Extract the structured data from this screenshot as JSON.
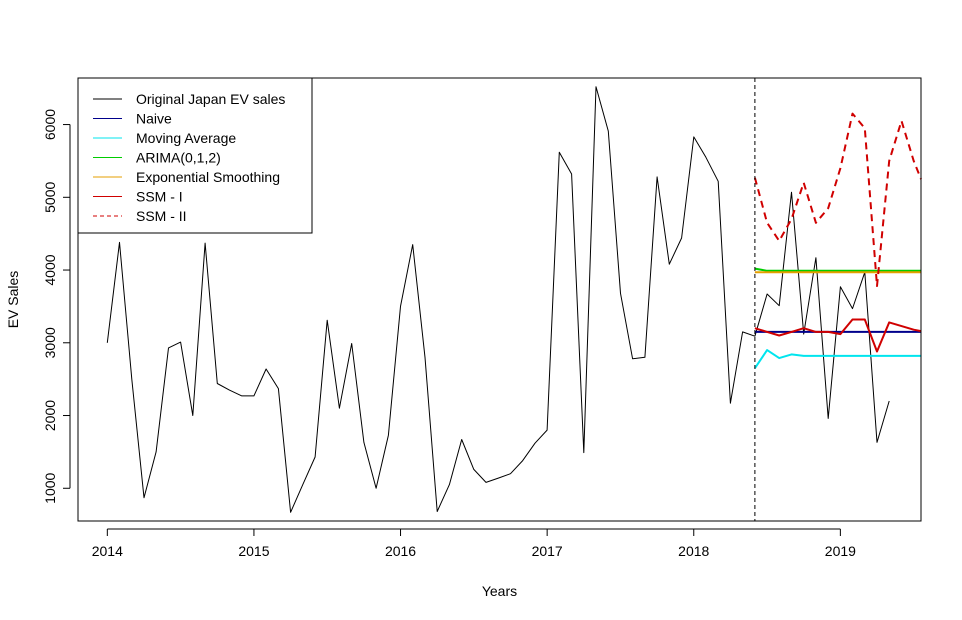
{
  "chart_data": {
    "type": "line",
    "xlabel": "Years",
    "ylabel": "EV Sales",
    "xlim": [
      2013.8,
      2019.55
    ],
    "ylim": [
      550,
      6640
    ],
    "x_ticks": [
      2014,
      2015,
      2016,
      2017,
      2018,
      2019
    ],
    "y_ticks": [
      1000,
      2000,
      3000,
      4000,
      5000,
      6000
    ],
    "grid": false,
    "legend_position": "top-left",
    "forecast_start": 2018.417,
    "series": [
      {
        "name": "Original Japan EV sales",
        "color": "#000000",
        "dash": "solid",
        "x": [
          2014.0,
          2014.083,
          2014.167,
          2014.25,
          2014.333,
          2014.417,
          2014.5,
          2014.583,
          2014.667,
          2014.75,
          2014.833,
          2014.917,
          2015.0,
          2015.083,
          2015.167,
          2015.25,
          2015.333,
          2015.417,
          2015.5,
          2015.583,
          2015.667,
          2015.75,
          2015.833,
          2015.917,
          2016.0,
          2016.083,
          2016.167,
          2016.25,
          2016.333,
          2016.417,
          2016.5,
          2016.583,
          2016.667,
          2016.75,
          2016.833,
          2016.917,
          2017.0,
          2017.083,
          2017.167,
          2017.25,
          2017.333,
          2017.417,
          2017.5,
          2017.583,
          2017.667,
          2017.75,
          2017.833,
          2017.917,
          2018.0,
          2018.083,
          2018.167,
          2018.25,
          2018.333,
          2018.417,
          2018.5,
          2018.583,
          2018.667,
          2018.75,
          2018.833,
          2018.917,
          2019.0,
          2019.083,
          2019.167,
          2019.25,
          2019.333
        ],
        "values": [
          3000,
          4380,
          2500,
          870,
          1500,
          2930,
          3010,
          2000,
          4370,
          2440,
          2350,
          2270,
          2270,
          2640,
          2370,
          670,
          1050,
          1430,
          3310,
          2100,
          2990,
          1630,
          1000,
          1730,
          3500,
          4350,
          2800,
          680,
          1050,
          1670,
          1260,
          1080,
          1140,
          1200,
          1380,
          1620,
          1800,
          5620,
          5320,
          1490,
          6520,
          5910,
          3680,
          2780,
          2800,
          5280,
          4080,
          4440,
          5830,
          5550,
          5220,
          2170,
          3150,
          3090,
          3670,
          3510,
          5070,
          3120,
          4170,
          1960,
          3770,
          3470,
          3970,
          1630,
          2200
        ]
      },
      {
        "name": "Naive",
        "color": "#00008B",
        "dash": "solid",
        "x": [
          2018.417,
          2019.55
        ],
        "values": [
          3150,
          3150
        ]
      },
      {
        "name": "Moving Average",
        "color": "#00E5EE",
        "dash": "solid",
        "x": [
          2018.417,
          2018.5,
          2018.583,
          2018.667,
          2018.75,
          2018.833,
          2019.55
        ],
        "values": [
          2650,
          2900,
          2790,
          2840,
          2820,
          2820,
          2820
        ]
      },
      {
        "name": "ARIMA(0,1,2)",
        "color": "#00CD00",
        "dash": "solid",
        "x": [
          2018.417,
          2018.5,
          2018.583,
          2019.55
        ],
        "values": [
          4020,
          3990,
          3990,
          3990
        ]
      },
      {
        "name": "Exponential Smoothing",
        "color": "#E69F00",
        "dash": "solid",
        "x": [
          2018.417,
          2019.55
        ],
        "values": [
          3970,
          3970
        ]
      },
      {
        "name": "SSM - I",
        "color": "#D00000",
        "dash": "solid",
        "x": [
          2018.417,
          2018.5,
          2018.583,
          2018.667,
          2018.75,
          2018.833,
          2018.917,
          2019.0,
          2019.083,
          2019.167,
          2019.25,
          2019.333,
          2019.417,
          2019.5,
          2019.55
        ],
        "values": [
          3200,
          3150,
          3100,
          3150,
          3200,
          3150,
          3150,
          3120,
          3320,
          3320,
          2880,
          3280,
          3230,
          3180,
          3160
        ]
      },
      {
        "name": "SSM - II",
        "color": "#D00000",
        "dash": "dashed",
        "x": [
          2018.417,
          2018.5,
          2018.583,
          2018.667,
          2018.75,
          2018.833,
          2018.917,
          2019.0,
          2019.083,
          2019.167,
          2019.25,
          2019.333,
          2019.417,
          2019.5,
          2019.55
        ],
        "values": [
          5270,
          4650,
          4400,
          4700,
          5200,
          4650,
          4850,
          5400,
          6150,
          5950,
          3780,
          5500,
          6050,
          5500,
          5250
        ]
      }
    ]
  }
}
